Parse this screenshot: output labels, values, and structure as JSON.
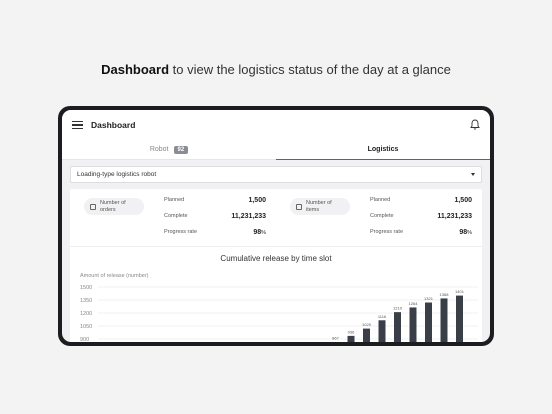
{
  "headline": {
    "bold": "Dashboard",
    "rest": " to view the logistics status of the day at a glance"
  },
  "app": {
    "title": "Dashboard"
  },
  "tabs": [
    {
      "label": "Robot",
      "badge": "92",
      "active": false
    },
    {
      "label": "Logistics",
      "active": true
    }
  ],
  "select": {
    "value": "Loading-type logistics robot"
  },
  "stats": [
    {
      "label_line1": "Number of",
      "label_line2": "orders",
      "icon": "clipboard-icon",
      "rows": [
        {
          "k": "Planned",
          "v": "1,500"
        },
        {
          "k": "Complete",
          "v": "11,231,233"
        },
        {
          "k": "Progress rate",
          "v": "98",
          "unit": "%"
        }
      ]
    },
    {
      "label_line1": "Number of",
      "label_line2": "items",
      "icon": "box-icon",
      "rows": [
        {
          "k": "Planned",
          "v": "1,500"
        },
        {
          "k": "Complete",
          "v": "11,231,233"
        },
        {
          "k": "Progress rate",
          "v": "98",
          "unit": "%"
        }
      ]
    }
  ],
  "chart_data": {
    "type": "bar",
    "title": "Cumulative release by time slot",
    "ylabel": "Amount of release (number)",
    "y_ticks": [
      1500,
      1350,
      1200,
      1050,
      900
    ],
    "ylim": [
      900,
      1500
    ],
    "values": [
      867,
      936,
      1020,
      1116,
      1210,
      1264,
      1321,
      1368,
      1401
    ],
    "bar_color": "#3a3f47"
  }
}
